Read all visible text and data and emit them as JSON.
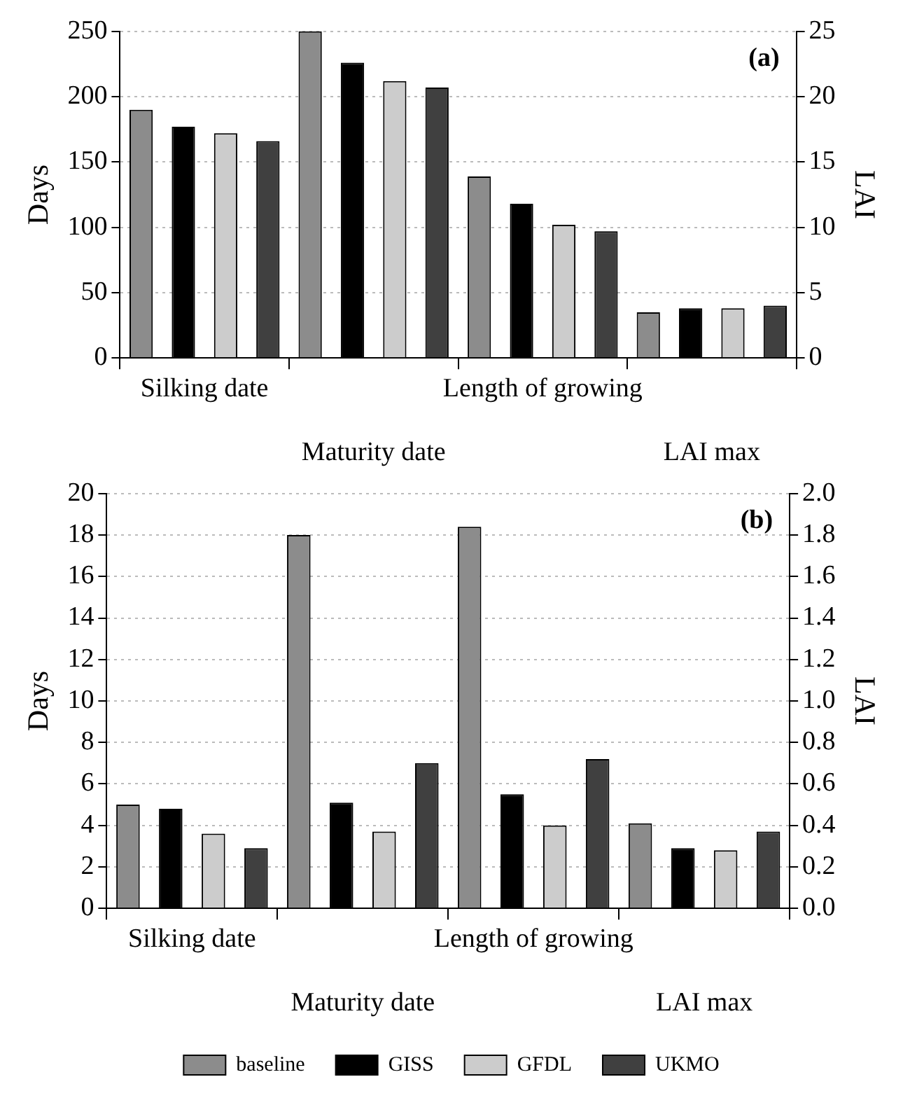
{
  "chart_data": [
    {
      "type": "bar",
      "ylabel": "Days",
      "y2label": "LAI",
      "annotations": [
        "(a)"
      ],
      "categories": [
        "Silking date",
        "Maturity date",
        "Length of growing",
        "LAI max"
      ],
      "ylim": [
        0,
        250
      ],
      "yticks": [
        0,
        50,
        100,
        150,
        200,
        250
      ],
      "y2lim": [
        0,
        25
      ],
      "y2ticks": [
        0,
        5,
        10,
        15,
        20,
        25
      ],
      "grid": "y",
      "legend": false,
      "series": [
        {
          "color": "#8c8c8c",
          "values": [
            190,
            250,
            139,
            null
          ]
        },
        {
          "color": "#000000",
          "values": [
            177,
            226,
            118,
            null
          ]
        },
        {
          "color": "#cccccc",
          "values": [
            172,
            212,
            102,
            null
          ]
        },
        {
          "color": "#404040",
          "values": [
            166,
            207,
            97,
            null
          ]
        },
        {
          "color": "#8c8c8c",
          "axis": "y2",
          "values": [
            null,
            null,
            null,
            3.5
          ]
        },
        {
          "color": "#000000",
          "axis": "y2",
          "values": [
            null,
            null,
            null,
            3.8
          ]
        },
        {
          "color": "#cccccc",
          "axis": "y2",
          "values": [
            null,
            null,
            null,
            3.8
          ]
        },
        {
          "color": "#404040",
          "axis": "y2",
          "values": [
            null,
            null,
            null,
            4.0
          ]
        }
      ]
    },
    {
      "type": "bar",
      "ylabel": "Days",
      "y2label": "LAI",
      "annotations": [
        "(b)"
      ],
      "categories": [
        "Silking date",
        "Maturity date",
        "Length of growing",
        "LAI max"
      ],
      "ylim": [
        0,
        20
      ],
      "yticks": [
        0,
        2,
        4,
        6,
        8,
        10,
        12,
        14,
        16,
        18,
        20
      ],
      "y2lim": [
        0,
        2
      ],
      "y2ticks": [
        {
          "value": 0,
          "label": "0.0"
        },
        {
          "value": 0.2,
          "label": "0.2"
        },
        {
          "value": 0.4,
          "label": "0.4"
        },
        {
          "value": 0.6,
          "label": "0.6"
        },
        {
          "value": 0.8,
          "label": "0.8"
        },
        {
          "value": 1,
          "label": "1.0"
        },
        {
          "value": 1.2,
          "label": "1.2"
        },
        {
          "value": 1.4,
          "label": "1.4"
        },
        {
          "value": 1.6,
          "label": "1.6"
        },
        {
          "value": 1.8,
          "label": "1.8"
        },
        {
          "value": 2,
          "label": "2.0"
        }
      ],
      "grid": "y",
      "legend": "bottom",
      "series": [
        {
          "name": "baseline",
          "color": "#8c8c8c",
          "values": [
            5.0,
            18.0,
            18.4,
            null
          ]
        },
        {
          "name": "GISS",
          "color": "#000000",
          "values": [
            4.8,
            5.1,
            5.5,
            null
          ]
        },
        {
          "name": "GFDL",
          "color": "#cccccc",
          "values": [
            3.6,
            3.7,
            4.0,
            null
          ]
        },
        {
          "name": "UKMO",
          "color": "#404040",
          "values": [
            2.9,
            7.0,
            7.2,
            null
          ]
        },
        {
          "color": "#8c8c8c",
          "axis": "y2",
          "values": [
            null,
            null,
            null,
            0.41
          ]
        },
        {
          "color": "#000000",
          "axis": "y2",
          "values": [
            null,
            null,
            null,
            0.29
          ]
        },
        {
          "color": "#cccccc",
          "axis": "y2",
          "values": [
            null,
            null,
            null,
            0.28
          ]
        },
        {
          "color": "#404040",
          "axis": "y2",
          "values": [
            null,
            null,
            null,
            0.37
          ]
        }
      ]
    }
  ]
}
